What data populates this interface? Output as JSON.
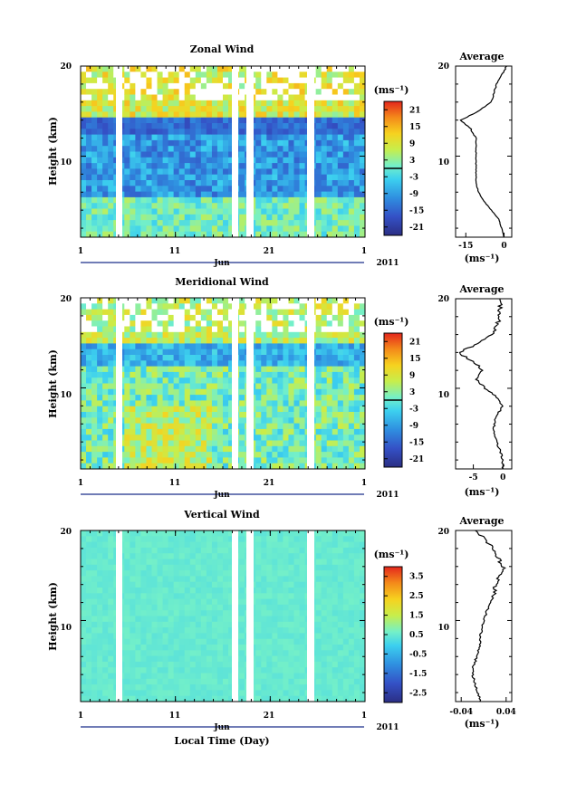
{
  "figure": {
    "xlabel": "Local Time (Day)",
    "month_label": "Jun",
    "year_label": "2011",
    "x_ticks": [
      "1",
      "11",
      "21",
      "1"
    ],
    "unit_label": "(ms⁻¹)"
  },
  "chart_data": [
    {
      "type": "heatmap",
      "title": "Zonal Wind",
      "ylabel": "Height (km)",
      "ylim": [
        1,
        20
      ],
      "y_ticks": [
        "10",
        "20"
      ],
      "colorbar_ticks": [
        "21",
        "15",
        "9",
        "3",
        "-3",
        "-9",
        "-15",
        "-21"
      ],
      "avg": {
        "title": "Average",
        "xlabel": "(ms⁻¹)",
        "x_ticks": [
          "-15",
          "0"
        ],
        "xlim": [
          -19,
          3
        ],
        "height_km": [
          1,
          2,
          3,
          4,
          5,
          6,
          7,
          8,
          9,
          10,
          11,
          12,
          13,
          14,
          15,
          16,
          17,
          18,
          19,
          20
        ],
        "values": [
          0,
          -1,
          -2,
          -5,
          -8,
          -10,
          -11,
          -11,
          -11,
          -11,
          -11,
          -11,
          -13,
          -17,
          -10,
          -5,
          -4,
          -3,
          -1,
          1
        ]
      }
    },
    {
      "type": "heatmap",
      "title": "Meridional Wind",
      "ylabel": "Height (km)",
      "ylim": [
        1,
        20
      ],
      "y_ticks": [
        "10",
        "20"
      ],
      "colorbar_ticks": [
        "21",
        "15",
        "9",
        "3",
        "-3",
        "-9",
        "-15",
        "-21"
      ],
      "avg": {
        "title": "Average",
        "xlabel": "(ms⁻¹)",
        "x_ticks": [
          "-5",
          "0"
        ],
        "xlim": [
          -8,
          1.5
        ],
        "height_km": [
          1,
          2,
          3,
          4,
          5,
          6,
          7,
          8,
          9,
          10,
          11,
          12,
          13,
          14,
          15,
          16,
          17,
          18,
          19,
          20
        ],
        "values": [
          0,
          0,
          -0.5,
          -1,
          -1.5,
          -1.5,
          -1,
          0,
          -1,
          -3,
          -4.5,
          -3.5,
          -5,
          -7.5,
          -4,
          -2,
          -1,
          -0.5,
          -0.5,
          -0.5
        ]
      }
    },
    {
      "type": "heatmap",
      "title": "Vertical Wind",
      "ylabel": "Height (km)",
      "ylim": [
        1,
        20
      ],
      "y_ticks": [
        "10",
        "20"
      ],
      "colorbar_ticks": [
        "3.5",
        "2.5",
        "1.5",
        "0.5",
        "-0.5",
        "-1.5",
        "-2.5"
      ],
      "avg": {
        "title": "Average",
        "xlabel": "(ms⁻¹)",
        "x_ticks": [
          "-0.04",
          "0.04"
        ],
        "xlim": [
          -0.05,
          0.05
        ],
        "height_km": [
          1,
          2,
          3,
          4,
          5,
          6,
          7,
          8,
          9,
          10,
          11,
          12,
          13,
          14,
          15,
          16,
          17,
          18,
          19,
          20
        ],
        "values": [
          -0.005,
          -0.01,
          -0.015,
          -0.02,
          -0.018,
          -0.012,
          -0.008,
          -0.006,
          -0.004,
          0.0,
          0.005,
          0.012,
          0.018,
          0.022,
          0.03,
          0.035,
          0.025,
          0.015,
          0.005,
          -0.015
        ]
      }
    }
  ]
}
